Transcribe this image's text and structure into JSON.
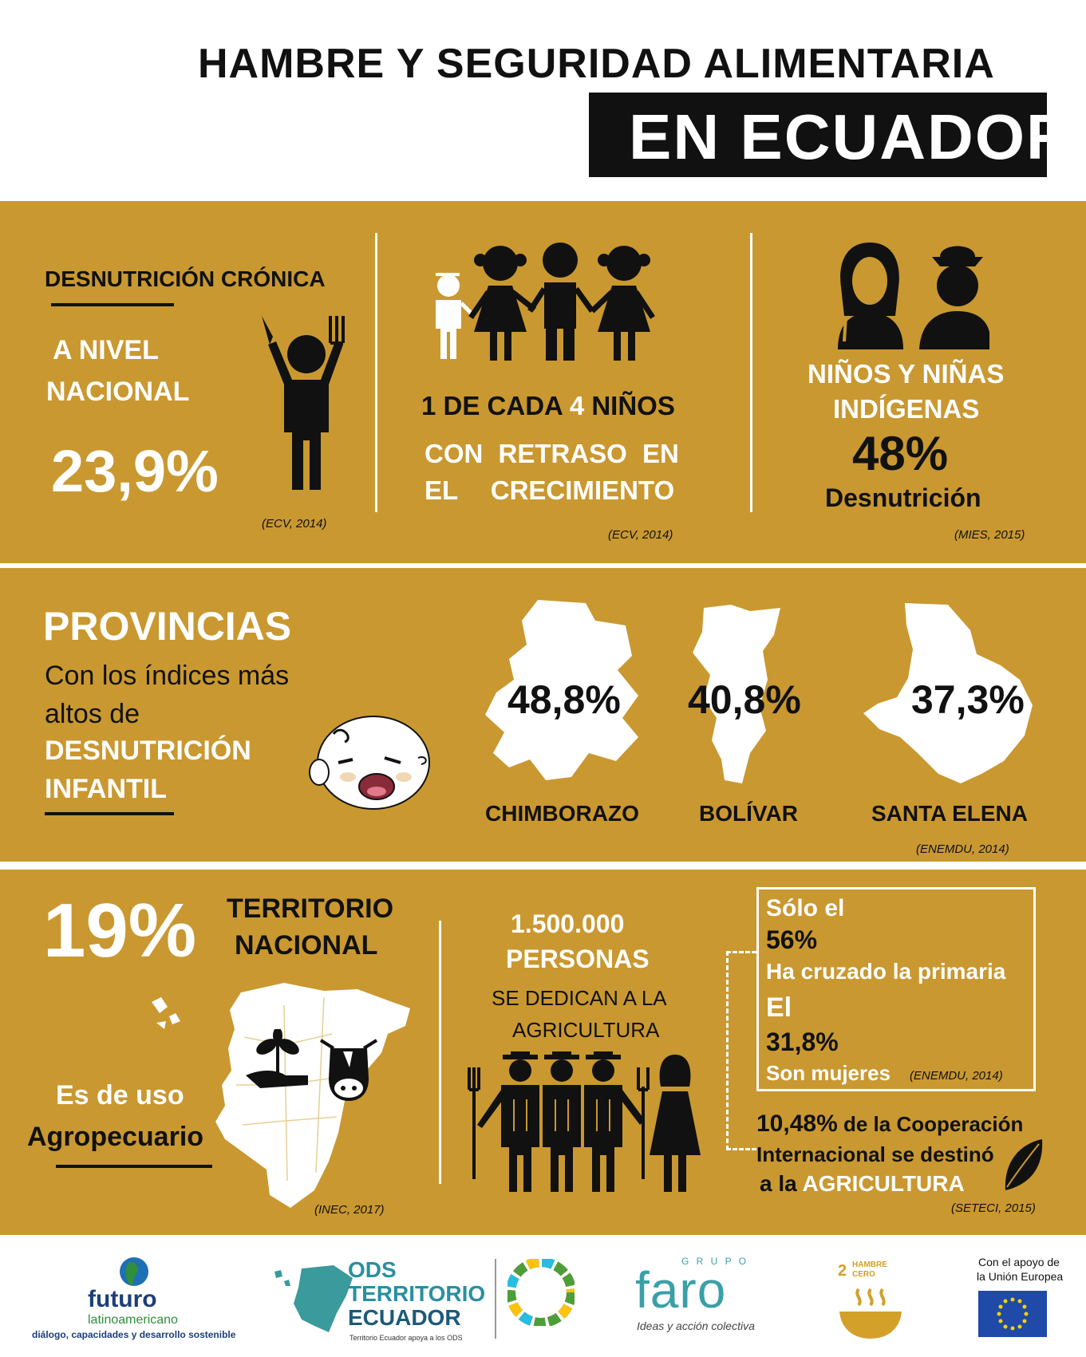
{
  "header": {
    "title_line1": "HAMBRE Y SEGURIDAD ALIMENTARIA",
    "title_line2": "EN ECUADOR"
  },
  "section1": {
    "col1": {
      "heading": "DESNUTRICIÓN CRÓNICA",
      "label_line1": "A NIVEL",
      "label_line2": "NACIONAL",
      "value": "23,9%",
      "source": "(ECV, 2014)"
    },
    "col2": {
      "line1_a": "1 DE CADA",
      "line1_b": "4",
      "line1_c": "NIÑOS",
      "line2": "CON RETRASO EN",
      "line3": "EL CRECIMIENTO",
      "source": "(ECV, 2014)"
    },
    "col3": {
      "line1": "NIÑOS Y NIÑAS",
      "line2": "INDÍGENAS",
      "value": "48%",
      "label": "Desnutrición",
      "source": "(MIES, 2015)"
    }
  },
  "section2": {
    "title": "PROVINCIAS",
    "sub_line1": "Con los índices más",
    "sub_line2": "altos  de",
    "sub_line3": "DESNUTRICIÓN",
    "sub_line4": "INFANTIL",
    "provinces": [
      {
        "value": "48,8%",
        "name": "CHIMBORAZO"
      },
      {
        "value": "40,8%",
        "name": "BOLÍVAR"
      },
      {
        "value": "37,3%",
        "name": "SANTA ELENA"
      }
    ],
    "source": "(ENEMDU, 2014)"
  },
  "section3": {
    "big_value": "19%",
    "territory_line1": "TERRITORIO",
    "territory_line2": "NACIONAL",
    "use_line1": "Es de uso",
    "use_line2": "Agropecuario",
    "source_left": "(INEC, 2017)",
    "people_value": "1.500.000",
    "people_label": "PERSONAS",
    "people_line1": "SE DEDICAN A LA",
    "people_line2": "AGRICULTURA",
    "box": {
      "l1": "Sólo el",
      "l2": "56%",
      "l3": "Ha cruzado la primaria",
      "l4": "El",
      "l5": "31,8%",
      "l6": "Son mujeres",
      "source": "(ENEMDU, 2014)"
    },
    "coop_value": "10,48%",
    "coop_text1": " de la Cooperación",
    "coop_text2": "Internacional se destinó",
    "coop_text3a": "a la ",
    "coop_text3b": "AGRICULTURA",
    "source_right": "(SETECI, 2015)"
  },
  "footer": {
    "futuro_name": "futuro",
    "futuro_sub": "latinoamericano",
    "futuro_tag": "diálogo, capacidades y desarrollo sostenible",
    "ods_line1": "ODS",
    "ods_line2": "TERRITORIO",
    "ods_line3": "ECUADOR",
    "ods_tag": "Territorio Ecuador apoya a los ODS",
    "grupo": "G R U P O",
    "faro": "faro",
    "faro_tag": "Ideas y acción colectiva",
    "ods2_num": "2",
    "ods2_line1": "HAMBRE",
    "ods2_line2": "CERO",
    "eu_line1": "Con el apoyo de",
    "eu_line2": "la Unión Europea"
  },
  "colors": {
    "gold": "#c99830",
    "black": "#111111",
    "white": "#ffffff"
  }
}
